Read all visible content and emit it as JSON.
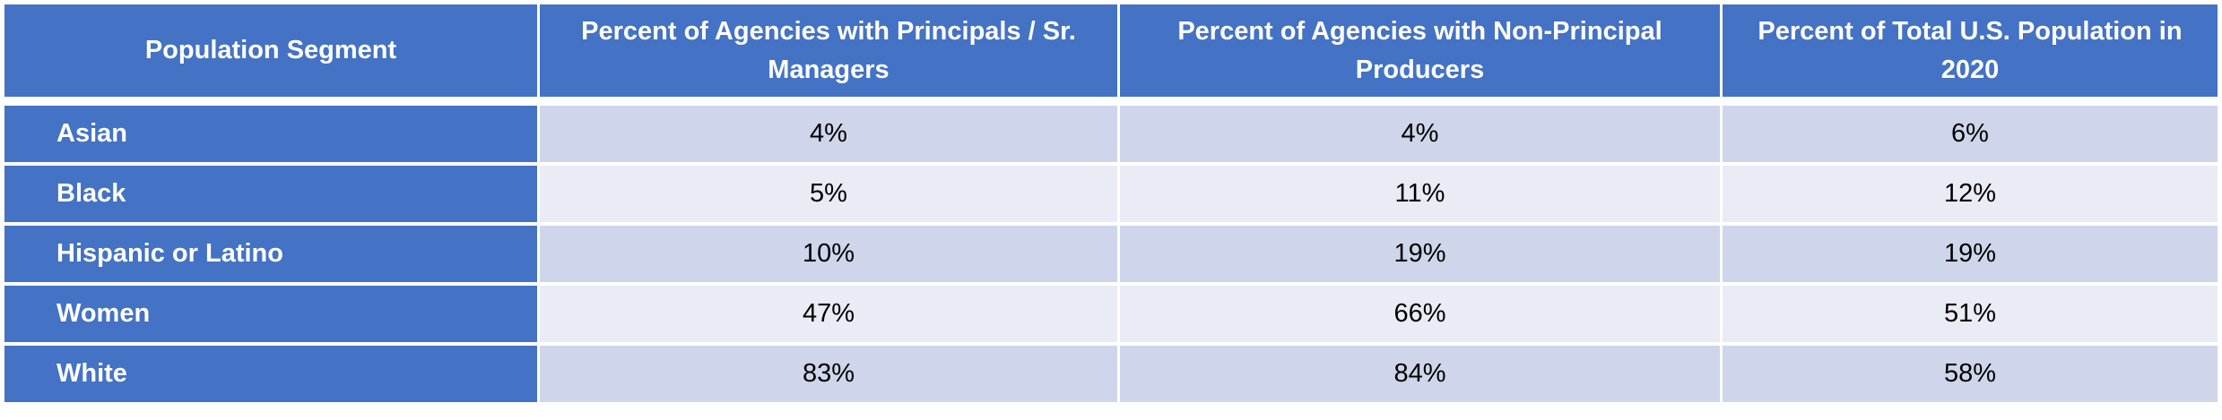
{
  "table": {
    "header": [
      "Population Segment",
      "Percent of Agencies with Principals / Sr. Managers",
      "Percent of Agencies with Non-Principal Producers",
      "Percent of Total U.S. Population in 2020"
    ],
    "rows": [
      [
        "Asian",
        "4%",
        "4%",
        "6%"
      ],
      [
        "Black",
        "5%",
        "11%",
        "12%"
      ],
      [
        "Hispanic or Latino",
        "10%",
        "19%",
        "19%"
      ],
      [
        "Women",
        "47%",
        "66%",
        "51%"
      ],
      [
        "White",
        "83%",
        "84%",
        "58%"
      ]
    ]
  }
}
